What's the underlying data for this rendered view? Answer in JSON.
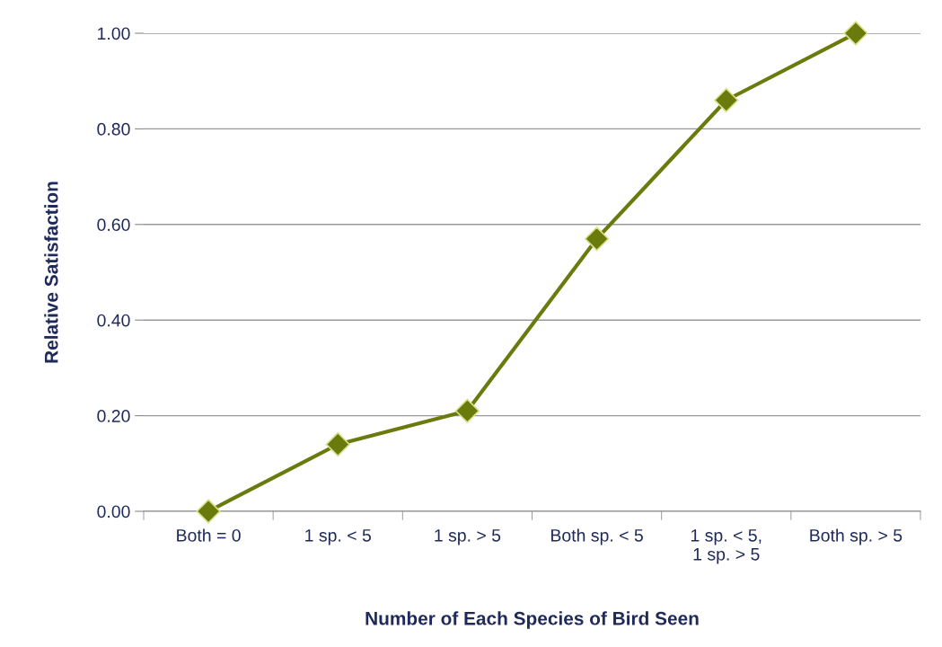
{
  "chart_data": {
    "type": "line",
    "xlabel": "Number of Each Species of Bird Seen",
    "ylabel": "Relative Satisfaction",
    "categories": [
      "Both = 0",
      "1 sp. < 5",
      "1 sp. > 5",
      "Both sp. < 5",
      "1 sp. < 5,\n1 sp. > 5",
      "Both sp. > 5"
    ],
    "series": [
      {
        "color": "#6b7a0c",
        "values": [
          0.0,
          0.14,
          0.21,
          0.57,
          0.86,
          1.0
        ]
      }
    ],
    "ylim": [
      0,
      1
    ],
    "yticks": [
      {
        "value": 0,
        "label": "0.00"
      },
      {
        "value": 0.2,
        "label": "0.20"
      },
      {
        "value": 0.4,
        "label": "0.40"
      },
      {
        "value": 0.6,
        "label": "0.60"
      },
      {
        "value": 0.8,
        "label": "0.80"
      },
      {
        "value": 1,
        "label": "1.00"
      }
    ],
    "grid": "y",
    "legend": false,
    "marker": "diamond",
    "line_style": "solid"
  }
}
